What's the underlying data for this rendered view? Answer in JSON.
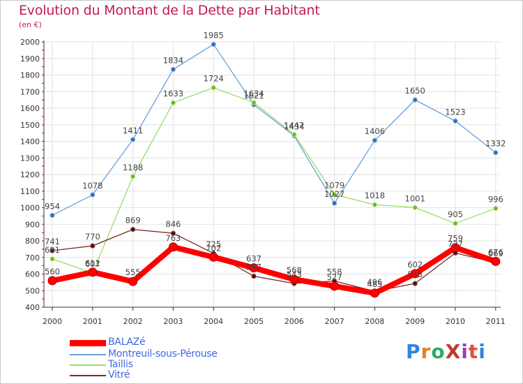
{
  "title": "Evolution du Montant de la Dette par Habitant",
  "unit": "(en €)",
  "brand": {
    "text": "ProXiti",
    "colors": [
      "#2e86de",
      "#e67e22",
      "#27ae60",
      "#c0392b",
      "#8e44ad",
      "#e74c3c",
      "#2e86de"
    ]
  },
  "chart_data": {
    "type": "line",
    "x": [
      "2000",
      "2001",
      "2002",
      "2003",
      "2004",
      "2005",
      "2006",
      "2007",
      "2008",
      "2009",
      "2010",
      "2011"
    ],
    "ylim": [
      400,
      2000
    ],
    "yticks": [
      400,
      500,
      600,
      700,
      800,
      900,
      1000,
      1100,
      1200,
      1300,
      1400,
      1500,
      1600,
      1700,
      1800,
      1900,
      2000
    ],
    "grid": true,
    "legend_position": "bottom-left",
    "series": [
      {
        "name": "BALAZé",
        "color": "#ff0000",
        "values": [
          560,
          611,
          555,
          763,
          702,
          637,
          568,
          527,
          485,
          602,
          759,
          676
        ]
      },
      {
        "name": "Montreuil-sous-Pérouse",
        "color": "#5b9bd5",
        "values": [
          954,
          1078,
          1411,
          1834,
          1985,
          1621,
          1434,
          1027,
          1406,
          1650,
          1523,
          1332
        ]
      },
      {
        "name": "Taillis",
        "color": "#99dd66",
        "values": [
          691,
          607,
          1188,
          1633,
          1724,
          1634,
          1442,
          1079,
          1018,
          1001,
          905,
          996
        ]
      },
      {
        "name": "Vitré",
        "color": "#6b1f1f",
        "values": [
          741,
          770,
          869,
          846,
          725,
          587,
          543,
          558,
          496,
          543,
          727,
          669
        ]
      }
    ]
  }
}
